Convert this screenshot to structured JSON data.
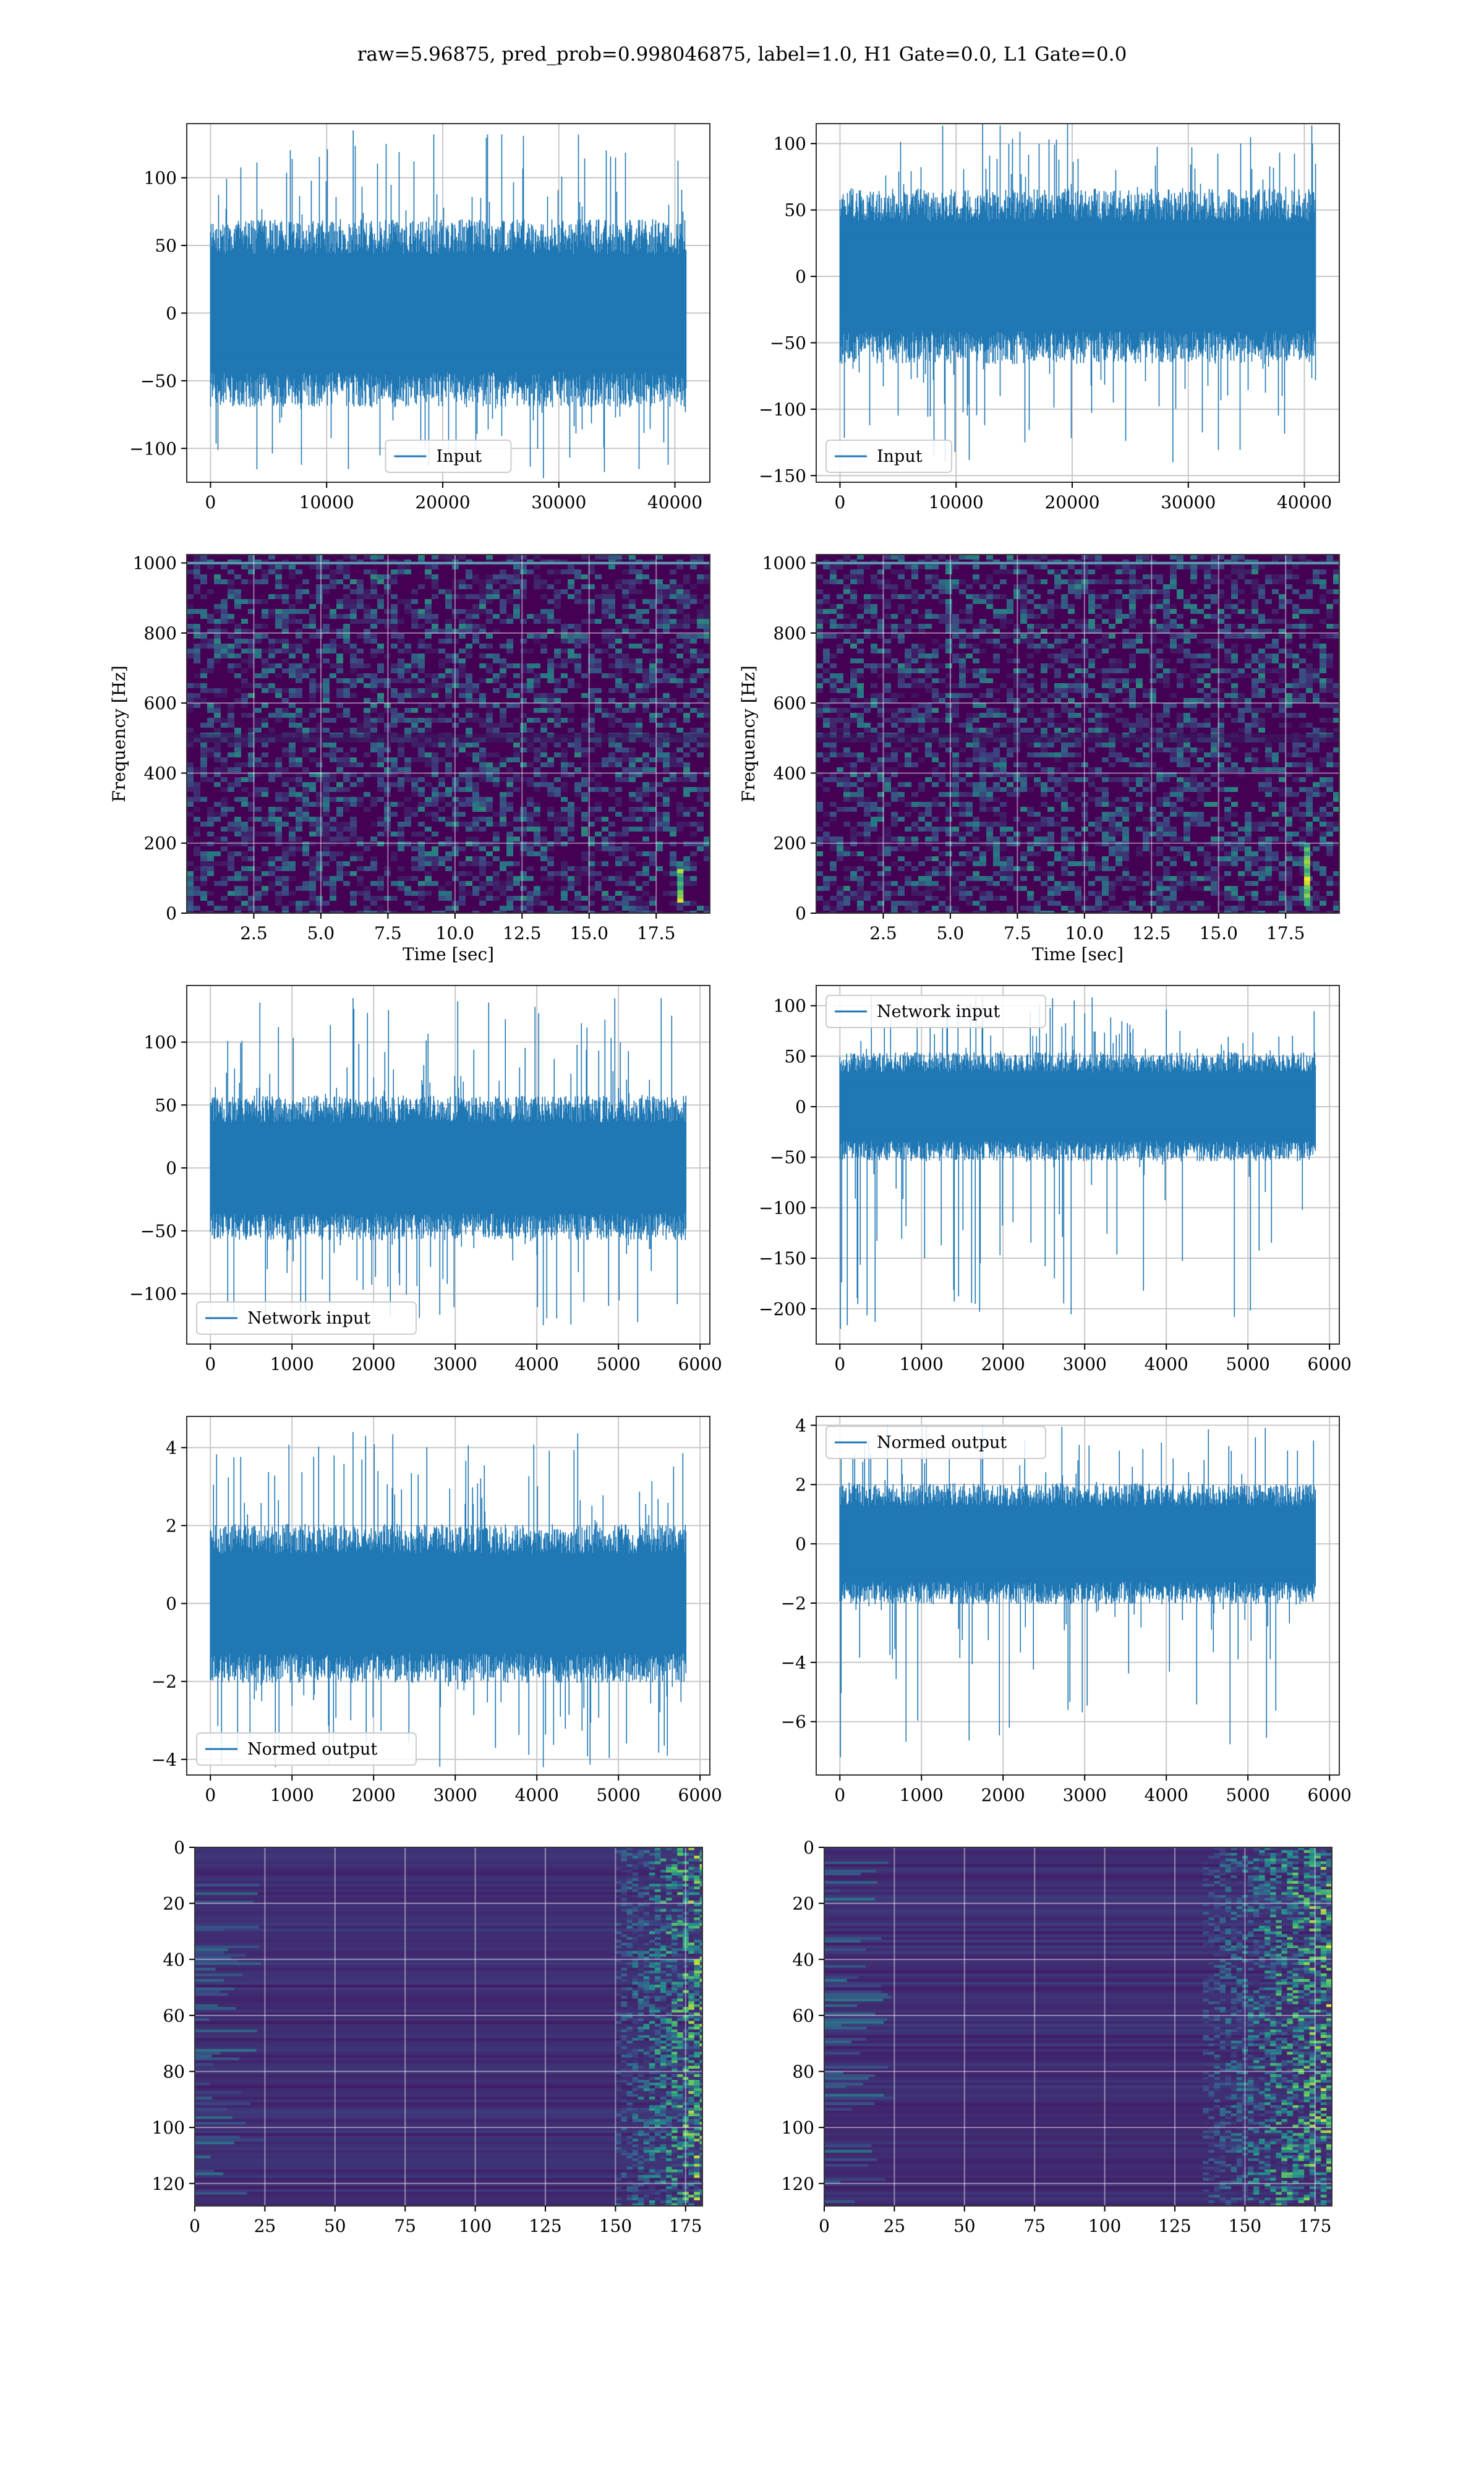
{
  "suptitle": "raw=5.96875, pred_prob=0.998046875, label=1.0, H1 Gate=0.0, L1 Gate=0.0",
  "colors": {
    "line": "#1f77b4",
    "grid": "#c8c8c8",
    "spec_bg": "#440154",
    "spec_mid": "#31688e",
    "spec_hi": "#35b779",
    "spec_top": "#fde725"
  },
  "chart_data": [
    {
      "id": "h1-input",
      "type": "line",
      "legend": "Input",
      "legend_loc": "lower center",
      "xlim": [
        -2048,
        43008
      ],
      "ylim": [
        -125,
        140
      ],
      "xticks": [
        0,
        10000,
        20000,
        30000,
        40000
      ],
      "yticks": [
        -100,
        -50,
        0,
        50,
        100
      ],
      "x_end": 40960,
      "n_points": 40960,
      "envelope": {
        "typical": 58,
        "peak_max": 135,
        "peak_min": -122
      }
    },
    {
      "id": "l1-input",
      "type": "line",
      "legend": "Input",
      "legend_loc": "lower left",
      "xlim": [
        -2048,
        43008
      ],
      "ylim": [
        -155,
        115
      ],
      "xticks": [
        0,
        10000,
        20000,
        30000,
        40000
      ],
      "yticks": [
        -150,
        -100,
        -50,
        0,
        50,
        100
      ],
      "x_end": 40960,
      "n_points": 40960,
      "envelope": {
        "typical": 55,
        "peak_max": 115,
        "peak_min": -140
      }
    },
    {
      "id": "h1-spectrogram",
      "type": "heatmap",
      "xlabel": "Time [sec]",
      "ylabel": "Frequency [Hz]",
      "xlim": [
        0,
        19.5
      ],
      "ylim": [
        0,
        1024
      ],
      "xticks": [
        2.5,
        5.0,
        7.5,
        10.0,
        12.5,
        15.0,
        17.5
      ],
      "yticks": [
        0,
        200,
        400,
        600,
        800,
        1000
      ],
      "bright_features": [
        {
          "t": 18.4,
          "f_low": 30,
          "f_high": 120
        }
      ]
    },
    {
      "id": "l1-spectrogram",
      "type": "heatmap",
      "xlabel": "Time [sec]",
      "ylabel": "Frequency [Hz]",
      "xlim": [
        0,
        19.5
      ],
      "ylim": [
        0,
        1024
      ],
      "xticks": [
        2.5,
        5.0,
        7.5,
        10.0,
        12.5,
        15.0,
        17.5
      ],
      "yticks": [
        0,
        200,
        400,
        600,
        800,
        1000
      ],
      "bright_features": [
        {
          "t": 18.3,
          "f_low": 20,
          "f_high": 200
        }
      ]
    },
    {
      "id": "h1-network-input",
      "type": "line",
      "legend": "Network input",
      "legend_loc": "lower left",
      "xlim": [
        -290,
        6120
      ],
      "ylim": [
        -140,
        145
      ],
      "xticks": [
        0,
        1000,
        2000,
        3000,
        4000,
        5000,
        6000
      ],
      "yticks": [
        -100,
        -50,
        0,
        50,
        100
      ],
      "x_end": 5830,
      "n_points": 5830,
      "envelope": {
        "typical": 48,
        "peak_max": 135,
        "peak_min": -125
      }
    },
    {
      "id": "l1-network-input",
      "type": "line",
      "legend": "Network input",
      "legend_loc": "upper left",
      "xlim": [
        -290,
        6120
      ],
      "ylim": [
        -235,
        120
      ],
      "xticks": [
        0,
        1000,
        2000,
        3000,
        4000,
        5000,
        6000
      ],
      "yticks": [
        -200,
        -150,
        -100,
        -50,
        0,
        50,
        100
      ],
      "x_end": 5830,
      "n_points": 5830,
      "envelope": {
        "typical": 45,
        "peak_max": 110,
        "peak_min": -220
      }
    },
    {
      "id": "h1-normed-output",
      "type": "line",
      "legend": "Normed output",
      "legend_loc": "lower left",
      "xlim": [
        -290,
        6120
      ],
      "ylim": [
        -4.4,
        4.8
      ],
      "xticks": [
        0,
        1000,
        2000,
        3000,
        4000,
        5000,
        6000
      ],
      "yticks": [
        -4,
        -2,
        0,
        2,
        4
      ],
      "x_end": 5830,
      "n_points": 5830,
      "envelope": {
        "typical": 1.7,
        "peak_max": 4.4,
        "peak_min": -4.2
      }
    },
    {
      "id": "l1-normed-output",
      "type": "line",
      "legend": "Normed output",
      "legend_loc": "upper left",
      "xlim": [
        -290,
        6120
      ],
      "ylim": [
        -7.8,
        4.3
      ],
      "xticks": [
        0,
        1000,
        2000,
        3000,
        4000,
        5000,
        6000
      ],
      "yticks": [
        -6,
        -4,
        -2,
        0,
        2,
        4
      ],
      "x_end": 5830,
      "n_points": 5830,
      "envelope": {
        "typical": 1.7,
        "peak_max": 4.0,
        "peak_min": -7.2
      }
    },
    {
      "id": "h1-feature-map",
      "type": "heatmap",
      "xlim": [
        0,
        181
      ],
      "ylim": [
        128,
        0
      ],
      "xticks": [
        0,
        25,
        50,
        75,
        100,
        125,
        150,
        175
      ],
      "yticks": [
        0,
        20,
        40,
        60,
        80,
        100,
        120
      ]
    },
    {
      "id": "l1-feature-map",
      "type": "heatmap",
      "xlim": [
        0,
        181
      ],
      "ylim": [
        128,
        0
      ],
      "xticks": [
        0,
        25,
        50,
        75,
        100,
        125,
        150,
        175
      ],
      "yticks": [
        0,
        20,
        40,
        60,
        80,
        100,
        120
      ]
    }
  ]
}
